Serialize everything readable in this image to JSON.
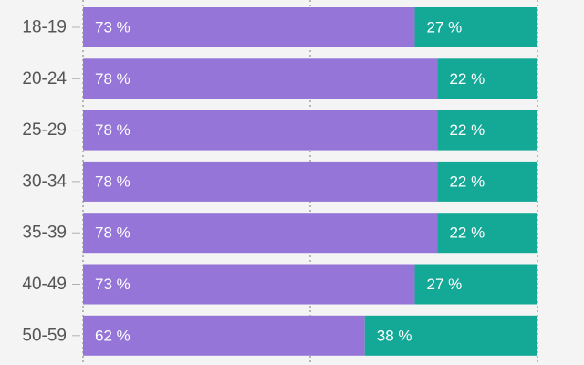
{
  "chart_data": {
    "type": "bar",
    "orientation": "horizontal",
    "stacked": true,
    "percent_stacked": true,
    "categories": [
      "18-19",
      "20-24",
      "25-29",
      "30-34",
      "35-39",
      "40-49",
      "50-59"
    ],
    "series": [
      {
        "color": "#9575d8",
        "values": [
          73,
          78,
          78,
          78,
          78,
          73,
          62
        ],
        "labels": [
          "73 %",
          "78 %",
          "78 %",
          "78 %",
          "78 %",
          "73 %",
          "62 %"
        ]
      },
      {
        "color": "#14a896",
        "values": [
          27,
          22,
          22,
          22,
          22,
          27,
          38
        ],
        "labels": [
          "27 %",
          "22 %",
          "22 %",
          "22 %",
          "22 %",
          "27 %",
          "38 %"
        ]
      }
    ],
    "xlim": [
      0,
      100
    ],
    "grid": true,
    "legend": "none"
  }
}
